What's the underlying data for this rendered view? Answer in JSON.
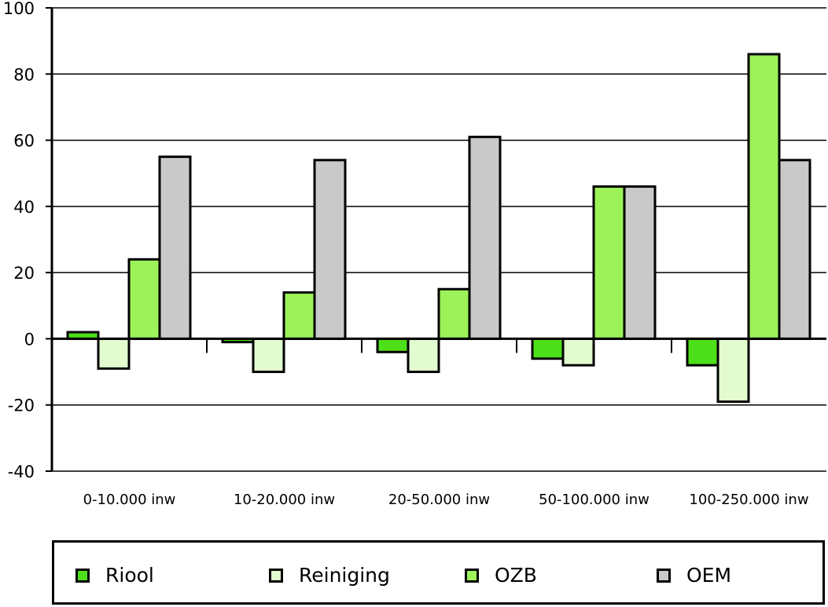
{
  "chart_data": {
    "type": "bar",
    "title": "",
    "xlabel": "",
    "ylabel": "",
    "ylim": [
      -40,
      100
    ],
    "yticks": [
      -40,
      -20,
      0,
      20,
      40,
      60,
      80,
      100
    ],
    "grid": true,
    "legend_position": "bottom",
    "categories": [
      "0-10.000 inw",
      "10-20.000 inw",
      "20-50.000 inw",
      "50-100.000 inw",
      "100-250.000 inw"
    ],
    "series": [
      {
        "name": "Riool",
        "color": "#4de01a",
        "values": [
          2,
          -1,
          -4,
          -6,
          -8
        ]
      },
      {
        "name": "Reiniging",
        "color": "#e2fcd0",
        "values": [
          -9,
          -10,
          -10,
          -8,
          -19
        ]
      },
      {
        "name": "OZB",
        "color": "#9df25a",
        "values": [
          24,
          14,
          15,
          46,
          86
        ]
      },
      {
        "name": "OEM",
        "color": "#c9c9c9",
        "values": [
          55,
          54,
          61,
          46,
          54
        ]
      }
    ]
  }
}
